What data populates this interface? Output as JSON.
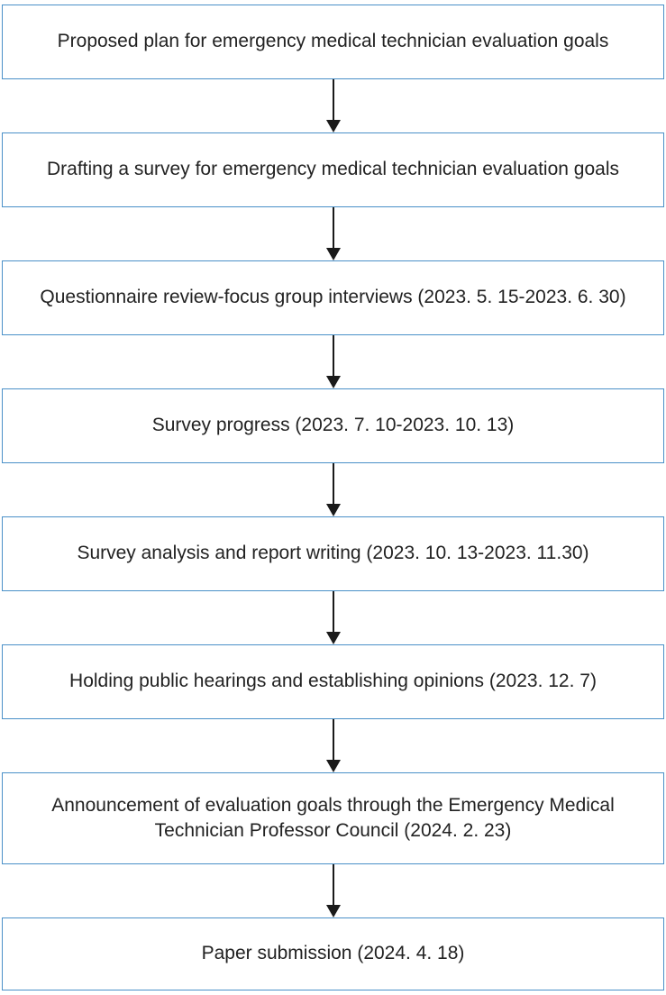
{
  "diagram": {
    "type": "flowchart",
    "direction": "top-down",
    "colors": {
      "box_border": "#4a90c8",
      "box_fill": "#ffffff",
      "text": "#222222",
      "arrow": "#1a1a1a",
      "background": "#ffffff"
    },
    "steps": [
      {
        "label": "Proposed plan for emergency medical technician evaluation goals"
      },
      {
        "label": "Drafting a survey for emergency medical technician evaluation goals"
      },
      {
        "label": "Questionnaire review-focus group interviews (2023. 5. 15-2023. 6. 30)"
      },
      {
        "label": "Survey progress (2023. 7. 10-2023. 10. 13)"
      },
      {
        "label": "Survey analysis and report writing (2023. 10. 13-2023. 11.30)"
      },
      {
        "label": "Holding public hearings and establishing opinions (2023. 12. 7)"
      },
      {
        "label": "Announcement of evaluation goals through the Emergency Medical Technician Professor Council (2024. 2. 23)"
      },
      {
        "label": "Paper submission (2024. 4. 18)"
      }
    ]
  }
}
